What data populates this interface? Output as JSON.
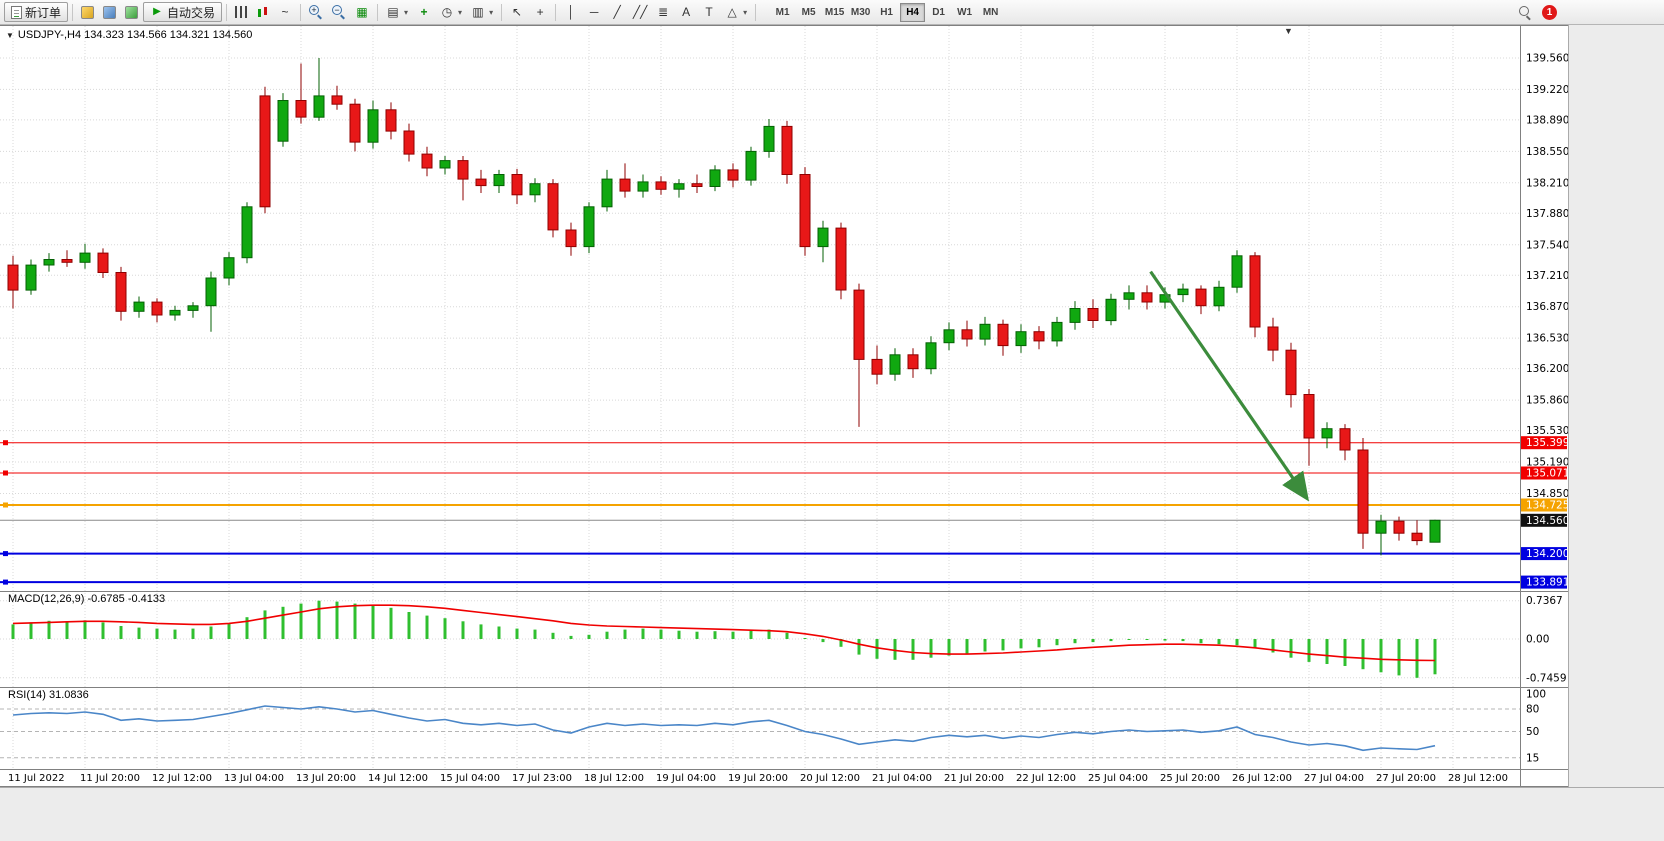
{
  "toolbar": {
    "new_order_label": "新订单",
    "auto_trading_label": "自动交易",
    "timeframes": [
      "M1",
      "M5",
      "M15",
      "M30",
      "H1",
      "H4",
      "D1",
      "W1",
      "MN"
    ],
    "active_timeframe": "H4",
    "notification_badge": "1",
    "icon_glyphs": {
      "play": "▶",
      "line_chart": "~",
      "zoom_in": "+",
      "zoom_out": "−",
      "tile_windows": "▦",
      "profiles": "▤",
      "indicators": "+",
      "periods": "◷",
      "templates": "▥",
      "cursor": "↖",
      "crosshair": "+",
      "vertical_line": "│",
      "horizontal_line": "─",
      "trendline": "╱",
      "channel": "╱╱",
      "fibonacci": "≣",
      "text": "A",
      "text_label": "T",
      "shapes": "△",
      "dropdown": "▾",
      "title_marker": "▼"
    }
  },
  "chart_header": {
    "title": "USDJPY-,H4 134.323 134.566 134.321 134.560"
  },
  "indicator_labels": {
    "macd": "MACD(12,26,9) -0.6785 -0.4133",
    "rsi": "RSI(14) 31.0836"
  },
  "colors": {
    "bull": "#10A810",
    "bull_border": "#046104",
    "bear": "#E81818",
    "bear_border": "#8F0000",
    "macd_hist": "#2FBF2F",
    "macd_signal": "#F00000",
    "rsi_line": "#4A86C8",
    "hline_red": "#F00000",
    "hline_orange": "#F5A300",
    "hline_blue": "#0000E0",
    "current_price_bg": "#111111",
    "arrow": "#3C8C3C",
    "grid": "#D8D8D8"
  },
  "chart_data": [
    {
      "type": "candlestick",
      "symbol": "USDJPY-",
      "period": "H4",
      "ohlc_display": {
        "open": "134.323",
        "high": "134.566",
        "low": "134.321",
        "close": "134.560"
      },
      "ylim": [
        133.795,
        139.906
      ],
      "price_ticks": [
        139.56,
        139.22,
        138.89,
        138.55,
        138.21,
        137.88,
        137.54,
        137.21,
        136.87,
        136.53,
        136.2,
        135.86,
        135.53,
        135.19,
        134.85
      ],
      "x_labels": [
        "11 Jul 2022",
        "11 Jul 20:00",
        "12 Jul 12:00",
        "13 Jul 04:00",
        "13 Jul 20:00",
        "14 Jul 12:00",
        "15 Jul 04:00",
        "17 Jul 23:00",
        "18 Jul 12:00",
        "19 Jul 04:00",
        "19 Jul 20:00",
        "20 Jul 12:00",
        "21 Jul 04:00",
        "21 Jul 20:00",
        "22 Jul 12:00",
        "25 Jul 04:00",
        "25 Jul 20:00",
        "26 Jul 12:00",
        "27 Jul 04:00",
        "27 Jul 20:00",
        "28 Jul 12:00"
      ],
      "candles_per_label": 4,
      "candles": [
        [
          137.32,
          137.42,
          136.85,
          137.05
        ],
        [
          137.05,
          137.38,
          137.0,
          137.32
        ],
        [
          137.32,
          137.45,
          137.25,
          137.38
        ],
        [
          137.38,
          137.48,
          137.3,
          137.35
        ],
        [
          137.35,
          137.55,
          137.28,
          137.45
        ],
        [
          137.45,
          137.5,
          137.18,
          137.24
        ],
        [
          137.24,
          137.3,
          136.72,
          136.82
        ],
        [
          136.82,
          136.98,
          136.75,
          136.92
        ],
        [
          136.92,
          136.96,
          136.7,
          136.78
        ],
        [
          136.78,
          136.88,
          136.72,
          136.83
        ],
        [
          136.83,
          136.92,
          136.75,
          136.88
        ],
        [
          136.88,
          137.25,
          136.6,
          137.18
        ],
        [
          137.18,
          137.46,
          137.1,
          137.4
        ],
        [
          137.4,
          138.0,
          137.34,
          137.95
        ],
        [
          139.15,
          139.25,
          137.88,
          137.95
        ],
        [
          138.66,
          139.18,
          138.6,
          139.1
        ],
        [
          139.1,
          139.5,
          138.85,
          138.92
        ],
        [
          138.92,
          139.56,
          138.88,
          139.15
        ],
        [
          139.15,
          139.26,
          139.0,
          139.06
        ],
        [
          139.06,
          139.12,
          138.55,
          138.65
        ],
        [
          138.65,
          139.1,
          138.58,
          139.0
        ],
        [
          139.0,
          139.08,
          138.68,
          138.77
        ],
        [
          138.77,
          138.85,
          138.44,
          138.52
        ],
        [
          138.52,
          138.6,
          138.28,
          138.37
        ],
        [
          138.37,
          138.5,
          138.3,
          138.45
        ],
        [
          138.45,
          138.5,
          138.02,
          138.25
        ],
        [
          138.25,
          138.35,
          138.1,
          138.18
        ],
        [
          138.18,
          138.35,
          138.1,
          138.3
        ],
        [
          138.3,
          138.36,
          137.98,
          138.08
        ],
        [
          138.08,
          138.26,
          138.0,
          138.2
        ],
        [
          138.2,
          138.25,
          137.62,
          137.7
        ],
        [
          137.7,
          137.78,
          137.42,
          137.52
        ],
        [
          137.52,
          138.0,
          137.45,
          137.95
        ],
        [
          137.95,
          138.35,
          137.9,
          138.25
        ],
        [
          138.25,
          138.42,
          138.05,
          138.12
        ],
        [
          138.12,
          138.3,
          138.05,
          138.22
        ],
        [
          138.22,
          138.28,
          138.08,
          138.14
        ],
        [
          138.14,
          138.25,
          138.05,
          138.2
        ],
        [
          138.2,
          138.3,
          138.1,
          138.17
        ],
        [
          138.17,
          138.4,
          138.12,
          138.35
        ],
        [
          138.35,
          138.42,
          138.16,
          138.24
        ],
        [
          138.24,
          138.6,
          138.18,
          138.55
        ],
        [
          138.55,
          138.9,
          138.48,
          138.82
        ],
        [
          138.82,
          138.88,
          138.2,
          138.3
        ],
        [
          138.3,
          138.38,
          137.42,
          137.52
        ],
        [
          137.52,
          137.8,
          137.35,
          137.72
        ],
        [
          137.72,
          137.78,
          136.95,
          137.05
        ],
        [
          137.05,
          137.12,
          135.57,
          136.3
        ],
        [
          136.3,
          136.45,
          136.03,
          136.14
        ],
        [
          136.14,
          136.42,
          136.07,
          136.35
        ],
        [
          136.35,
          136.42,
          136.1,
          136.2
        ],
        [
          136.2,
          136.55,
          136.14,
          136.48
        ],
        [
          136.48,
          136.7,
          136.4,
          136.62
        ],
        [
          136.62,
          136.72,
          136.44,
          136.52
        ],
        [
          136.52,
          136.76,
          136.45,
          136.68
        ],
        [
          136.68,
          136.73,
          136.34,
          136.45
        ],
        [
          136.45,
          136.68,
          136.37,
          136.6
        ],
        [
          136.6,
          136.66,
          136.41,
          136.5
        ],
        [
          136.5,
          136.76,
          136.44,
          136.7
        ],
        [
          136.7,
          136.93,
          136.62,
          136.85
        ],
        [
          136.85,
          136.95,
          136.64,
          136.72
        ],
        [
          136.72,
          137.01,
          136.67,
          136.95
        ],
        [
          136.95,
          137.1,
          136.84,
          137.02
        ],
        [
          137.02,
          137.1,
          136.84,
          136.92
        ],
        [
          136.92,
          137.08,
          136.85,
          137.0
        ],
        [
          137.0,
          137.12,
          136.92,
          137.06
        ],
        [
          137.06,
          137.1,
          136.79,
          136.88
        ],
        [
          136.88,
          137.15,
          136.82,
          137.08
        ],
        [
          137.08,
          137.48,
          137.02,
          137.42
        ],
        [
          137.42,
          137.46,
          136.54,
          136.65
        ],
        [
          136.65,
          136.75,
          136.28,
          136.4
        ],
        [
          136.4,
          136.48,
          135.78,
          135.92
        ],
        [
          135.92,
          135.98,
          135.15,
          135.45
        ],
        [
          135.45,
          135.62,
          135.34,
          135.55
        ],
        [
          135.55,
          135.6,
          135.21,
          135.32
        ],
        [
          135.32,
          135.45,
          134.25,
          134.42
        ],
        [
          134.42,
          134.62,
          134.18,
          134.55
        ],
        [
          134.55,
          134.6,
          134.34,
          134.42
        ],
        [
          134.42,
          134.56,
          134.29,
          134.34
        ],
        [
          134.323,
          134.566,
          134.321,
          134.56
        ]
      ],
      "hlines": [
        {
          "price": 135.399,
          "label": "135.399",
          "color": "red"
        },
        {
          "price": 135.071,
          "label": "135.071",
          "color": "red"
        },
        {
          "price": 134.725,
          "label": "134.725",
          "color": "orange"
        },
        {
          "price": 134.2,
          "label": "134.200",
          "color": "blue"
        },
        {
          "price": 133.891,
          "label": "133.891",
          "color": "blue"
        }
      ],
      "current_price": {
        "value": 134.56,
        "label": "134.560"
      },
      "trend_arrow": {
        "from_candle": 63.2,
        "from_price": 137.25,
        "to_candle": 71.8,
        "to_price": 134.82
      }
    },
    {
      "type": "bar",
      "name": "MACD",
      "params": "12,26,9",
      "value": -0.6785,
      "signal_value": -0.4133,
      "ticks": [
        {
          "v": 0.7367,
          "label": "0.7367"
        },
        {
          "v": 0,
          "label": "0.00"
        },
        {
          "v": -0.7459,
          "label": "-0.7459"
        }
      ],
      "histogram": [
        0.28,
        0.32,
        0.35,
        0.33,
        0.36,
        0.32,
        0.25,
        0.22,
        0.2,
        0.18,
        0.2,
        0.24,
        0.3,
        0.42,
        0.55,
        0.62,
        0.68,
        0.7367,
        0.72,
        0.68,
        0.66,
        0.6,
        0.52,
        0.45,
        0.4,
        0.34,
        0.28,
        0.24,
        0.2,
        0.18,
        0.12,
        0.06,
        0.08,
        0.14,
        0.18,
        0.2,
        0.18,
        0.16,
        0.14,
        0.15,
        0.14,
        0.16,
        0.18,
        0.12,
        0.02,
        -0.06,
        -0.15,
        -0.3,
        -0.38,
        -0.4,
        -0.4,
        -0.36,
        -0.32,
        -0.28,
        -0.24,
        -0.22,
        -0.18,
        -0.16,
        -0.12,
        -0.08,
        -0.06,
        -0.04,
        -0.02,
        -0.02,
        -0.03,
        -0.04,
        -0.08,
        -0.1,
        -0.12,
        -0.18,
        -0.26,
        -0.36,
        -0.44,
        -0.48,
        -0.52,
        -0.58,
        -0.64,
        -0.7,
        -0.7459,
        -0.6785
      ],
      "signal": [
        0.3,
        0.31,
        0.32,
        0.33,
        0.34,
        0.34,
        0.33,
        0.32,
        0.3,
        0.29,
        0.28,
        0.28,
        0.3,
        0.34,
        0.4,
        0.46,
        0.52,
        0.58,
        0.62,
        0.64,
        0.65,
        0.65,
        0.64,
        0.62,
        0.59,
        0.55,
        0.51,
        0.47,
        0.43,
        0.39,
        0.35,
        0.3,
        0.27,
        0.25,
        0.24,
        0.23,
        0.22,
        0.21,
        0.2,
        0.19,
        0.18,
        0.17,
        0.16,
        0.14,
        0.1,
        0.05,
        -0.02,
        -0.1,
        -0.17,
        -0.22,
        -0.26,
        -0.28,
        -0.29,
        -0.29,
        -0.28,
        -0.27,
        -0.25,
        -0.23,
        -0.21,
        -0.18,
        -0.16,
        -0.14,
        -0.12,
        -0.11,
        -0.1,
        -0.1,
        -0.11,
        -0.12,
        -0.14,
        -0.17,
        -0.21,
        -0.25,
        -0.29,
        -0.32,
        -0.35,
        -0.37,
        -0.39,
        -0.4,
        -0.41,
        -0.4133
      ]
    },
    {
      "type": "line",
      "name": "RSI",
      "params": "14",
      "value": 31.0836,
      "ylim": [
        0,
        100
      ],
      "ticks": [
        {
          "v": 100,
          "label": "100"
        },
        {
          "v": 80,
          "label": "80"
        },
        {
          "v": 50,
          "label": "50"
        },
        {
          "v": 15,
          "label": "15"
        }
      ],
      "levels": [
        80,
        50,
        15
      ],
      "values": [
        72,
        74,
        75,
        74,
        76,
        73,
        65,
        67,
        64,
        65,
        66,
        70,
        74,
        79,
        84,
        82,
        80,
        83,
        80,
        76,
        78,
        73,
        68,
        64,
        66,
        61,
        59,
        61,
        58,
        60,
        52,
        48,
        56,
        61,
        58,
        60,
        58,
        59,
        58,
        61,
        59,
        63,
        65,
        58,
        50,
        46,
        40,
        33,
        36,
        39,
        37,
        42,
        45,
        43,
        45,
        41,
        44,
        42,
        46,
        49,
        47,
        50,
        52,
        50,
        51,
        52,
        49,
        51,
        56,
        46,
        42,
        36,
        32,
        34,
        31,
        25,
        28,
        27,
        26,
        31.0836
      ]
    }
  ]
}
